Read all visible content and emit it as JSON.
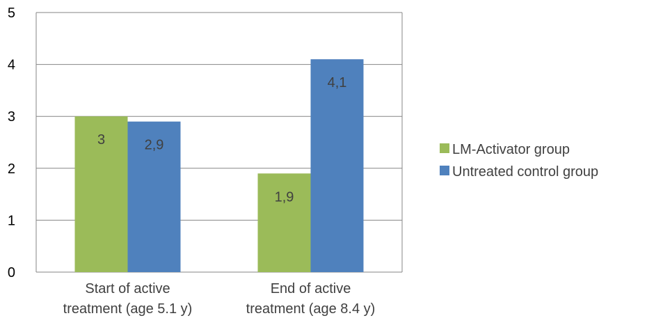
{
  "chart_data": {
    "type": "bar",
    "title": "",
    "xlabel": "",
    "ylabel": "",
    "categories": [
      [
        "Start of active",
        "treatment (age 5.1 y)"
      ],
      [
        "End of active",
        "treatment (age 8.4 y)"
      ]
    ],
    "series": [
      {
        "name": "LM-Activator group",
        "color": "#9BBB59",
        "values": [
          3,
          1.9
        ],
        "labels": [
          "3",
          "1,9"
        ]
      },
      {
        "name": "Untreated control group",
        "color": "#4F81BD",
        "values": [
          2.9,
          4.1
        ],
        "labels": [
          "2,9",
          "4,1"
        ]
      }
    ],
    "ylim": [
      0,
      5
    ],
    "yticks": [
      "0",
      "1",
      "2",
      "3",
      "4",
      "5"
    ],
    "grid": true,
    "legend": "right"
  }
}
